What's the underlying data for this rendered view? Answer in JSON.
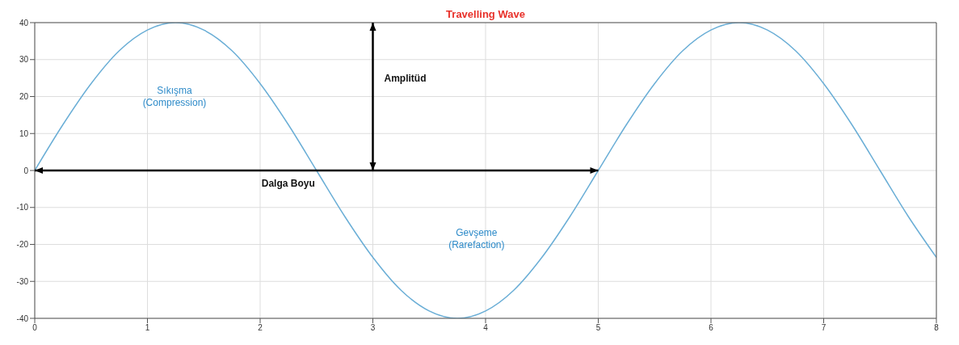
{
  "chart_data": {
    "type": "line",
    "title": "Travelling Wave",
    "x": [
      0,
      0.25,
      0.5,
      0.75,
      1,
      1.25,
      1.5,
      1.75,
      2,
      2.25,
      2.5,
      2.75,
      3,
      3.25,
      3.5,
      3.75,
      4,
      4.25,
      4.5,
      4.75,
      5,
      5.25,
      5.5,
      5.75,
      6,
      6.25,
      6.5,
      6.75,
      7,
      7.25,
      7.5,
      7.75,
      8
    ],
    "series": [
      {
        "color": "#6aaed6",
        "values": [
          0,
          12.4,
          23.5,
          32.4,
          38,
          40,
          38,
          32.4,
          23.5,
          12.4,
          0,
          -12.4,
          -23.5,
          -32.4,
          -38,
          -40,
          -38,
          -32.4,
          -23.5,
          -12.4,
          0,
          12.4,
          23.5,
          32.4,
          38,
          40,
          38,
          32.4,
          23.5,
          12.4,
          0,
          -12.4,
          -23.5
        ]
      }
    ],
    "xlim": [
      0,
      8
    ],
    "xticks": [
      0,
      1,
      2,
      3,
      4,
      5,
      6,
      7,
      8
    ],
    "ylim": [
      -40,
      40
    ],
    "yticks": [
      -40,
      -30,
      -20,
      -10,
      0,
      10,
      20,
      30,
      40
    ],
    "grid": true,
    "legend": false,
    "marker": "none",
    "line_style": "solid",
    "annotations": [
      "Sıkışma\n(Compression)",
      "Gevşeme\n(Rarefaction)",
      "Amplitüd",
      {
        "text": "Dalga Boyu",
        "x": 2.5,
        "y": 0
      }
    ]
  }
}
